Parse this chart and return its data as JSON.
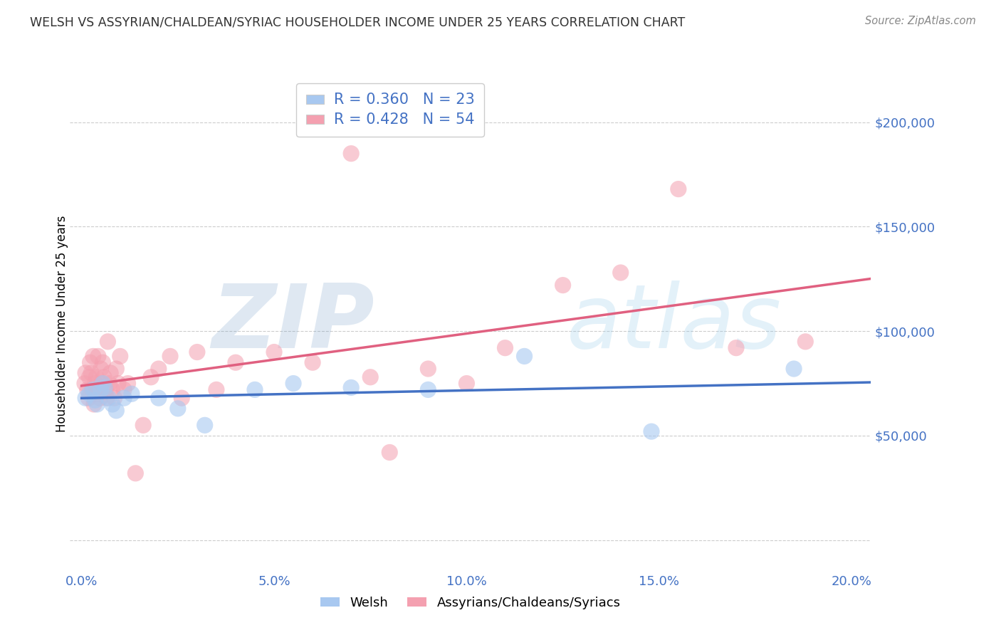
{
  "title": "WELSH VS ASSYRIAN/CHALDEAN/SYRIAC HOUSEHOLDER INCOME UNDER 25 YEARS CORRELATION CHART",
  "source": "Source: ZipAtlas.com",
  "ylabel": "Householder Income Under 25 years",
  "xlabel_vals": [
    0.0,
    5.0,
    10.0,
    15.0,
    20.0
  ],
  "ylabel_vals": [
    50000,
    100000,
    150000,
    200000
  ],
  "xlim": [
    -0.3,
    20.5
  ],
  "ylim": [
    -15000,
    222000
  ],
  "welsh_R": 0.36,
  "welsh_N": 23,
  "assyrian_R": 0.428,
  "assyrian_N": 54,
  "welsh_fill_color": "#a8c8f0",
  "welsh_edge_color": "#a8c8f0",
  "welsh_line_color": "#4472c4",
  "assyrian_fill_color": "#f4a0b0",
  "assyrian_edge_color": "#f4a0b0",
  "assyrian_line_color": "#e06080",
  "legend_label_welsh": "Welsh",
  "legend_label_assyrian": "Assyrians/Chaldeans/Syriacs",
  "title_color": "#333333",
  "axis_label_color": "#4472c4",
  "grid_color": "#cccccc",
  "welsh_x": [
    0.1,
    0.2,
    0.3,
    0.35,
    0.4,
    0.5,
    0.55,
    0.6,
    0.7,
    0.8,
    0.9,
    1.1,
    1.3,
    2.0,
    2.5,
    3.2,
    4.5,
    5.5,
    7.0,
    9.0,
    11.5,
    14.8,
    18.5
  ],
  "welsh_y": [
    68000,
    70000,
    72000,
    67000,
    65000,
    72000,
    75000,
    73000,
    68000,
    65000,
    62000,
    68000,
    70000,
    68000,
    63000,
    55000,
    72000,
    75000,
    73000,
    72000,
    88000,
    52000,
    82000
  ],
  "assyrian_x": [
    0.08,
    0.1,
    0.15,
    0.18,
    0.2,
    0.22,
    0.25,
    0.28,
    0.3,
    0.32,
    0.35,
    0.38,
    0.4,
    0.43,
    0.45,
    0.48,
    0.5,
    0.52,
    0.55,
    0.58,
    0.62,
    0.65,
    0.68,
    0.72,
    0.75,
    0.8,
    0.85,
    0.9,
    0.95,
    1.0,
    1.1,
    1.2,
    1.4,
    1.6,
    1.8,
    2.0,
    2.3,
    2.6,
    3.0,
    3.5,
    4.0,
    5.0,
    6.0,
    7.0,
    8.0,
    9.0,
    10.0,
    11.0,
    12.5,
    14.0,
    15.5,
    17.0,
    18.8,
    7.5
  ],
  "assyrian_y": [
    75000,
    80000,
    72000,
    68000,
    78000,
    85000,
    80000,
    72000,
    88000,
    65000,
    75000,
    78000,
    70000,
    88000,
    72000,
    68000,
    82000,
    75000,
    85000,
    78000,
    72000,
    68000,
    95000,
    75000,
    80000,
    72000,
    68000,
    82000,
    75000,
    88000,
    72000,
    75000,
    32000,
    55000,
    78000,
    82000,
    88000,
    68000,
    90000,
    72000,
    85000,
    90000,
    85000,
    185000,
    42000,
    82000,
    75000,
    92000,
    122000,
    128000,
    168000,
    92000,
    95000,
    78000
  ],
  "watermark": "ZIPatlas",
  "background_color": "#ffffff"
}
